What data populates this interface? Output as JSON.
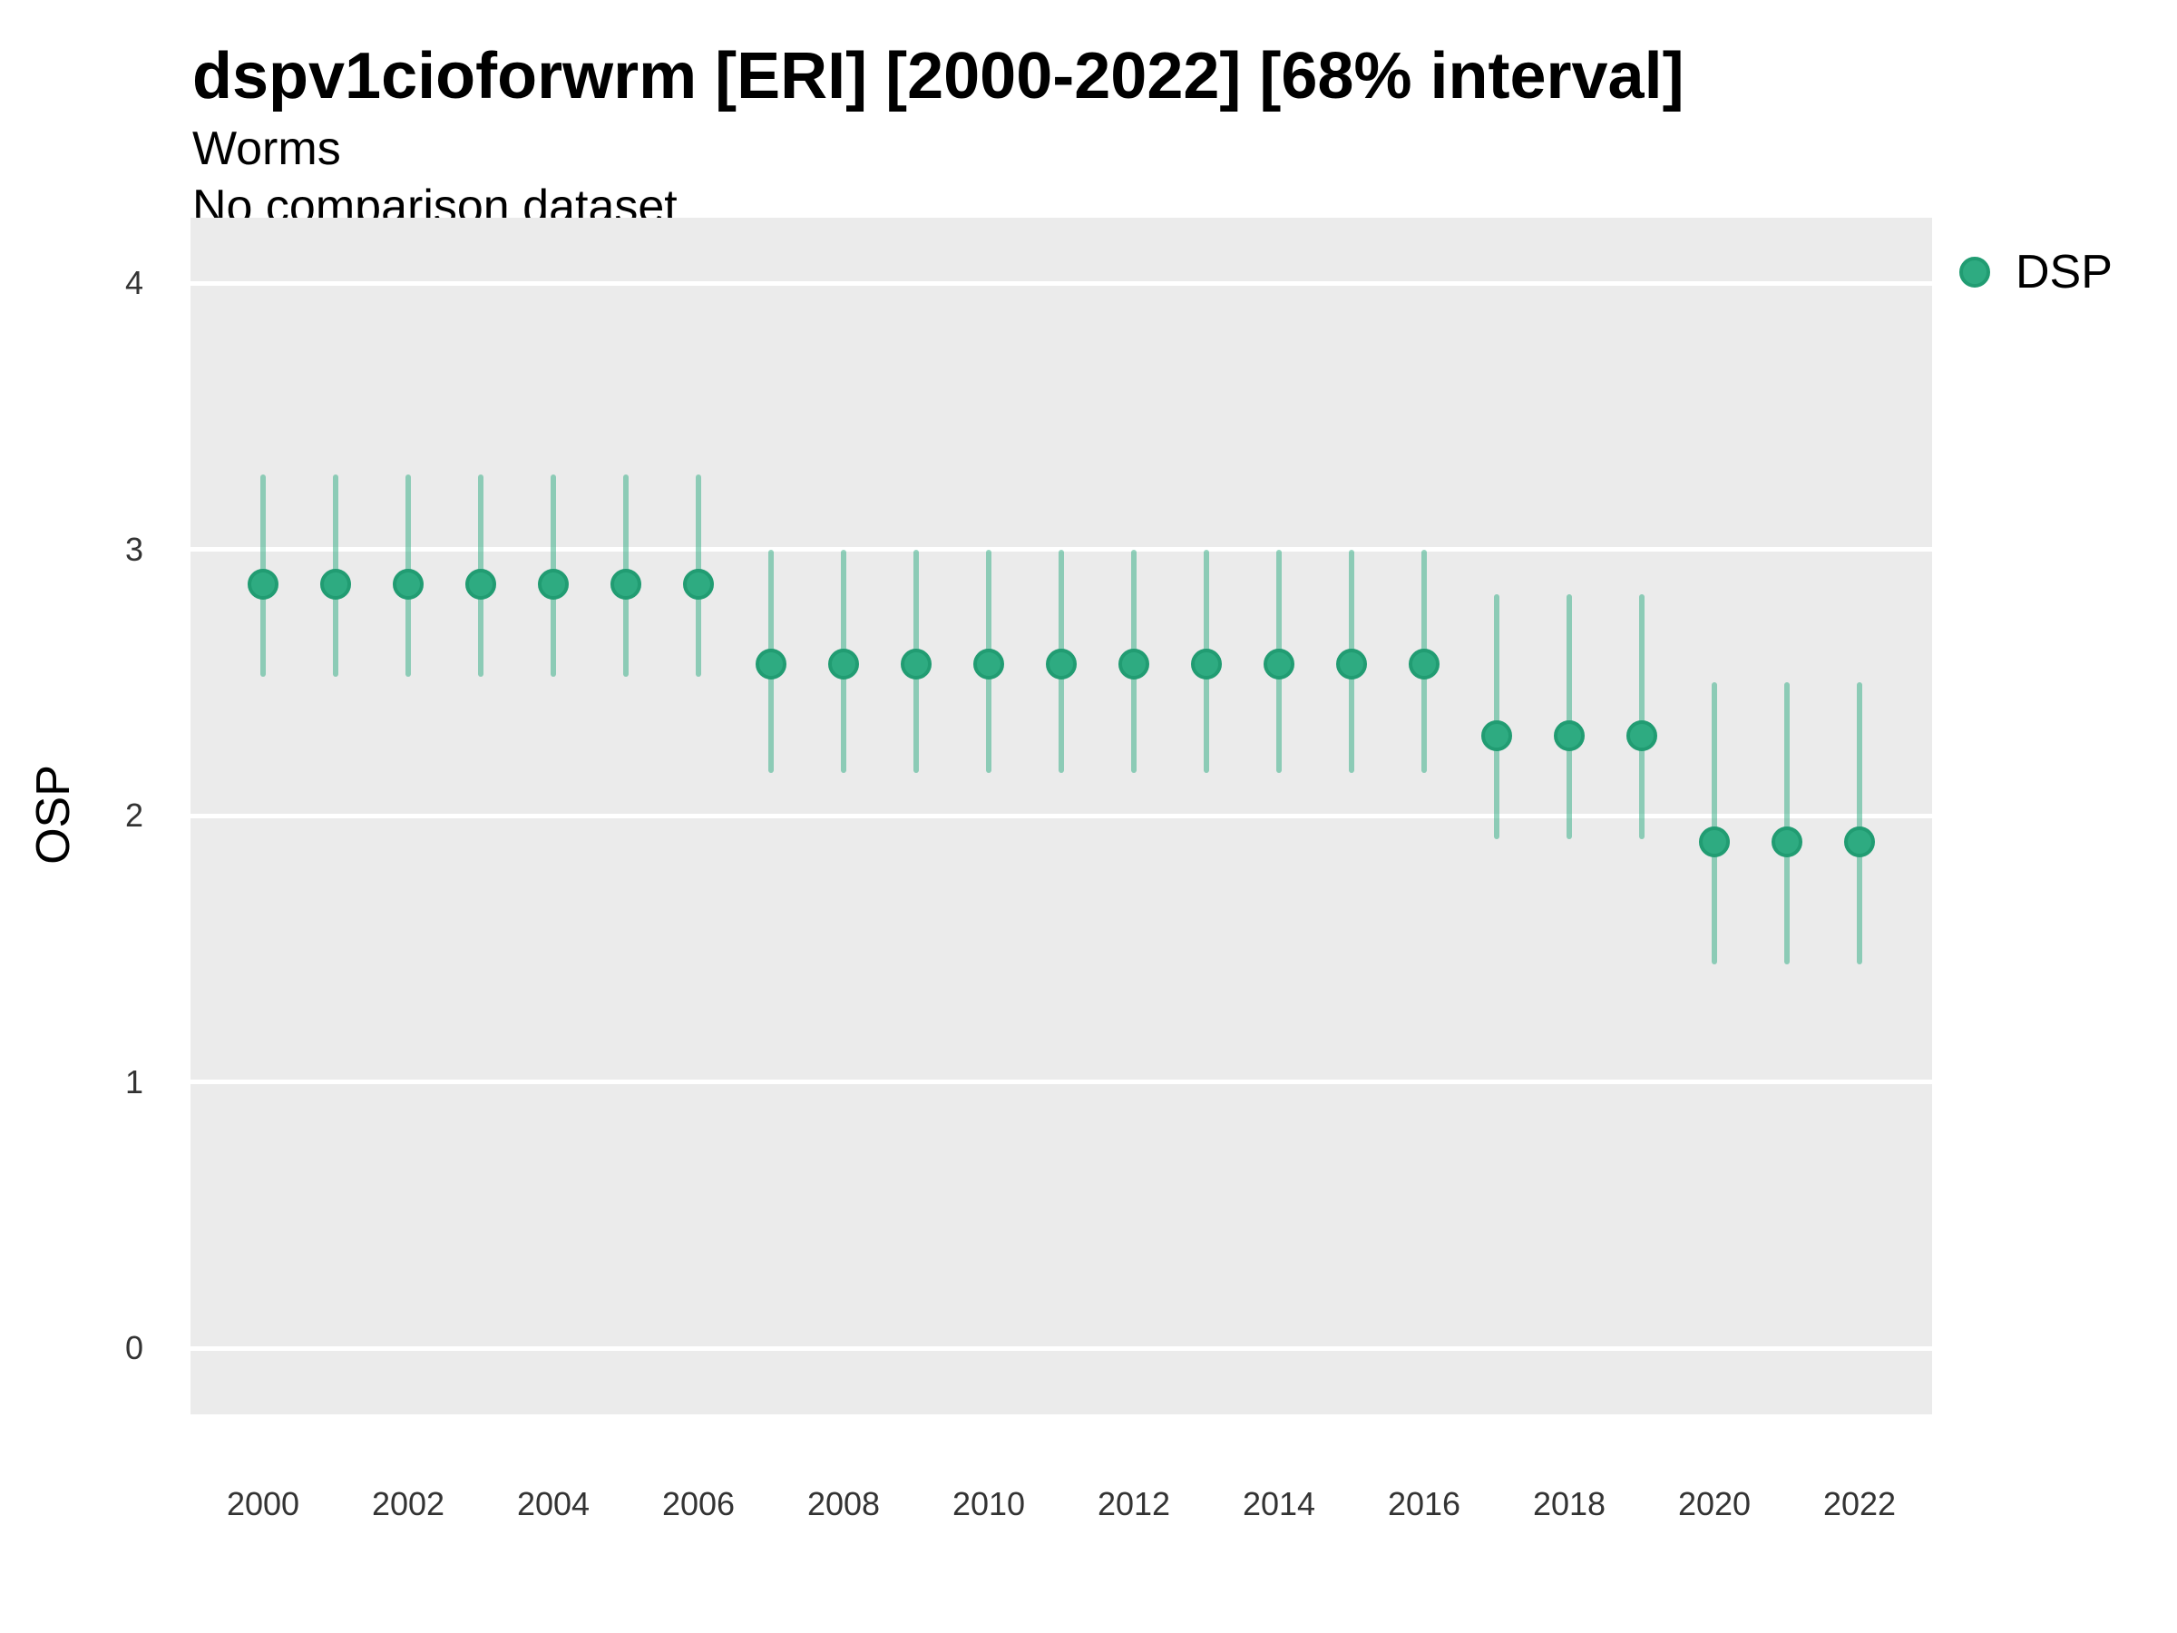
{
  "title": "dspv1cioforwrm [ERI] [2000-2022] [68% interval]",
  "subtitle": "Worms",
  "subtitle2": "No comparison dataset",
  "legend": {
    "position": "right",
    "items": [
      {
        "label": "DSP",
        "marker": "circle-icon",
        "color": "#2EAB81"
      }
    ]
  },
  "colors": {
    "point_fill": "#2EAB81",
    "point_stroke": "#219C72",
    "interval_line": "rgba(46, 171, 129, 0.5)",
    "panel_background": "#EBEBEB",
    "gridline": "#FFFFFF",
    "axis_text": "#333333",
    "title_text": "#000000"
  },
  "chart_data": {
    "type": "pointrange",
    "title": "dspv1cioforwrm [ERI] [2000-2022] [68% interval]",
    "subtitle": "Worms",
    "annotation": "No comparison dataset",
    "xlabel": "",
    "ylabel": "OSP",
    "legend_position": "right",
    "grid": "major horizontal white gridlines on gray panel, no minor gridlines",
    "xlim": [
      1999,
      2023
    ],
    "ylim": [
      -0.25,
      4.25
    ],
    "x_ticks": [
      "2000",
      "2002",
      "2004",
      "2006",
      "2008",
      "2010",
      "2012",
      "2014",
      "2016",
      "2018",
      "2020",
      "2022"
    ],
    "x_tick_years": [
      2000,
      2002,
      2004,
      2006,
      2008,
      2010,
      2012,
      2014,
      2016,
      2018,
      2020,
      2022
    ],
    "y_ticks": [
      "0",
      "1",
      "2",
      "3",
      "4"
    ],
    "y_tick_values": [
      0,
      1,
      2,
      3,
      4
    ],
    "interval_level": "68%",
    "series": [
      {
        "name": "DSP",
        "x": [
          2000,
          2001,
          2002,
          2003,
          2004,
          2005,
          2006,
          2007,
          2008,
          2009,
          2010,
          2011,
          2012,
          2013,
          2014,
          2015,
          2016,
          2017,
          2018,
          2019,
          2020,
          2021,
          2022
        ],
        "estimate": [
          2.87,
          2.87,
          2.87,
          2.87,
          2.87,
          2.87,
          2.87,
          2.57,
          2.57,
          2.57,
          2.57,
          2.57,
          2.57,
          2.57,
          2.57,
          2.57,
          2.57,
          2.3,
          2.3,
          2.3,
          1.9,
          1.9,
          1.9
        ],
        "lower_68": [
          2.52,
          2.52,
          2.52,
          2.52,
          2.52,
          2.52,
          2.52,
          2.16,
          2.16,
          2.16,
          2.16,
          2.16,
          2.16,
          2.16,
          2.16,
          2.16,
          2.16,
          1.91,
          1.91,
          1.91,
          1.44,
          1.44,
          1.44
        ],
        "upper_68": [
          3.28,
          3.28,
          3.28,
          3.28,
          3.28,
          3.28,
          3.28,
          3.0,
          3.0,
          3.0,
          3.0,
          3.0,
          3.0,
          3.0,
          3.0,
          3.0,
          3.0,
          2.83,
          2.83,
          2.83,
          2.5,
          2.5,
          2.5
        ]
      }
    ]
  }
}
